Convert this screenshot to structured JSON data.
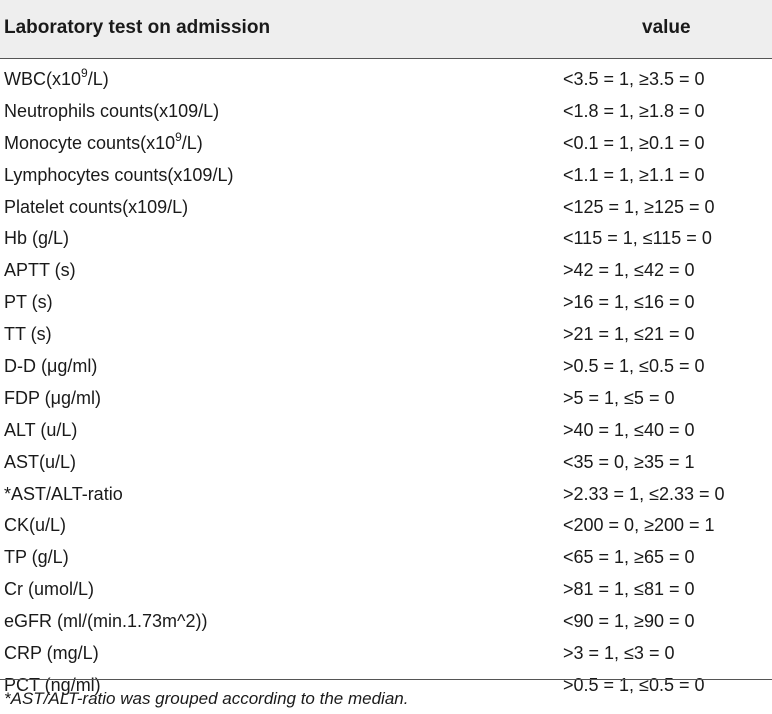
{
  "header": {
    "test_label": "Laboratory test on admission",
    "value_label": "value"
  },
  "rows": [
    {
      "test_pre": "WBC(x10",
      "test_sup": "9",
      "test_post": "/L)",
      "value": "<3.5 = 1, ≥3.5 = 0"
    },
    {
      "test": "Neutrophils counts(x109/L)",
      "value": "<1.8 = 1, ≥1.8 = 0"
    },
    {
      "test_pre": "Monocyte counts(x10",
      "test_sup": "9",
      "test_post": "/L)",
      "value": "<0.1 = 1, ≥0.1 = 0"
    },
    {
      "test": "Lymphocytes counts(x109/L)",
      "value": "<1.1 = 1, ≥1.1 = 0"
    },
    {
      "test": "Platelet counts(x109/L)",
      "value": "<125 = 1, ≥125 = 0"
    },
    {
      "test": "Hb (g/L)",
      "value": "<115 = 1, ≤115 = 0"
    },
    {
      "test": "APTT (s)",
      "value": ">42 = 1, ≤42 = 0"
    },
    {
      "test": "PT (s)",
      "value": ">16 = 1, ≤16 = 0"
    },
    {
      "test": "TT (s)",
      "value": ">21 = 1, ≤21 = 0"
    },
    {
      "test": "D-D (μg/ml)",
      "value": ">0.5 = 1, ≤0.5 = 0"
    },
    {
      "test": "FDP (μg/ml)",
      "value": ">5 = 1, ≤5 = 0"
    },
    {
      "test": "ALT (u/L)",
      "value": ">40 = 1, ≤40 = 0"
    },
    {
      "test": "AST(u/L)",
      "value": "<35 = 0, ≥35 = 1"
    },
    {
      "test": "*AST/ALT-ratio",
      "value": ">2.33 = 1, ≤2.33 = 0"
    },
    {
      "test": "CK(u/L)",
      "value": "<200 = 0, ≥200 = 1"
    },
    {
      "test": "TP (g/L)",
      "value": "<65 = 1, ≥65 = 0"
    },
    {
      "test": "Cr (umol/L)",
      "value": ">81 = 1, ≤81 = 0"
    },
    {
      "test": "eGFR (ml/(min.1.73m^2))",
      "value": "<90 = 1, ≥90 = 0"
    },
    {
      "test": "CRP (mg/L)",
      "value": ">3 = 1, ≤3 = 0"
    },
    {
      "test": "PCT (ng/ml)",
      "value": ">0.5 = 1, ≤0.5 = 0"
    }
  ],
  "footnote": "*AST/ALT-ratio was grouped according to the median."
}
